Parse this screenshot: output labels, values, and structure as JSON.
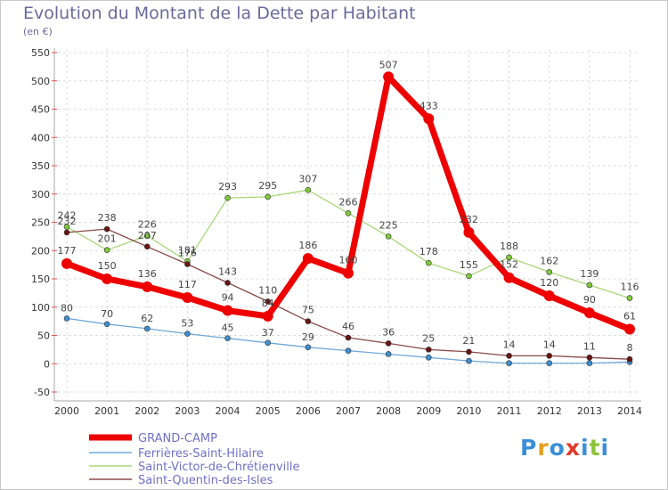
{
  "logo": {
    "letters": [
      "P",
      "r",
      "o",
      "x",
      "i",
      "t",
      "i"
    ],
    "colors": [
      "#3a8fd8",
      "#e8a020",
      "#3a8fd8",
      "#e23a2a",
      "#3a8fd8",
      "#8cc23a",
      "#3a8fd8"
    ]
  },
  "chart_data": {
    "type": "line",
    "title": "Evolution du Montant de la Dette par Habitant",
    "subtitle": "(en €)",
    "xlabel": "",
    "ylabel": "",
    "categories": [
      "2000",
      "2001",
      "2002",
      "2003",
      "2004",
      "2005",
      "2006",
      "2007",
      "2008",
      "2009",
      "2010",
      "2011",
      "2012",
      "2013",
      "2014"
    ],
    "ylim": [
      -50,
      550
    ],
    "yticks": [
      -50,
      0,
      50,
      100,
      150,
      200,
      250,
      300,
      350,
      400,
      450,
      500,
      550
    ],
    "grid": true,
    "legend_position": "bottom-left",
    "series": [
      {
        "name": "GRAND-CAMP",
        "color": "#ee0000",
        "marker": "#ee0000",
        "width": 7,
        "radius": 6,
        "labels": true,
        "values": [
          177,
          150,
          136,
          117,
          94,
          84,
          186,
          160,
          507,
          433,
          232,
          152,
          120,
          90,
          61
        ],
        "label_text": [
          "177",
          "150",
          "136",
          "117",
          "94",
          "84",
          "186",
          "160",
          "507",
          "433",
          "232",
          "152",
          "120",
          "90",
          "61"
        ]
      },
      {
        "name": "Ferrières-Saint-Hilaire",
        "color": "#6fa8d8",
        "marker": "#3d8fd0",
        "width": 1.3,
        "radius": 3,
        "labels": true,
        "values": [
          80,
          70,
          62,
          53,
          45,
          37,
          29,
          23,
          17,
          11,
          5,
          1,
          1,
          1,
          3
        ],
        "label_text": [
          "80",
          "70",
          "62",
          "53",
          "45",
          "37",
          "29",
          "",
          "",
          "",
          "",
          "",
          "",
          "",
          ""
        ]
      },
      {
        "name": "Saint-Victor-de-Chrétienville",
        "color": "#a8d878",
        "marker": "#7ec83a",
        "width": 1.3,
        "radius": 3,
        "labels": true,
        "values": [
          242,
          201,
          226,
          181,
          293,
          295,
          307,
          266,
          225,
          178,
          155,
          188,
          162,
          139,
          116
        ],
        "label_text": [
          "242",
          "201",
          "226",
          "181",
          "293",
          "295",
          "307",
          "266",
          "225",
          "178",
          "155",
          "188",
          "162",
          "139",
          "116"
        ]
      },
      {
        "name": "Saint-Quentin-des-Isles",
        "color": "#8a4a4a",
        "marker": "#6a1414",
        "width": 1.3,
        "radius": 3,
        "labels": true,
        "values": [
          232,
          238,
          207,
          176,
          143,
          110,
          75,
          46,
          36,
          25,
          21,
          14,
          14,
          11,
          8
        ],
        "label_text": [
          "232",
          "238",
          "207",
          "176",
          "143",
          "110",
          "75",
          "46",
          "36",
          "25",
          "21",
          "14",
          "14",
          "11",
          "8"
        ]
      }
    ]
  }
}
